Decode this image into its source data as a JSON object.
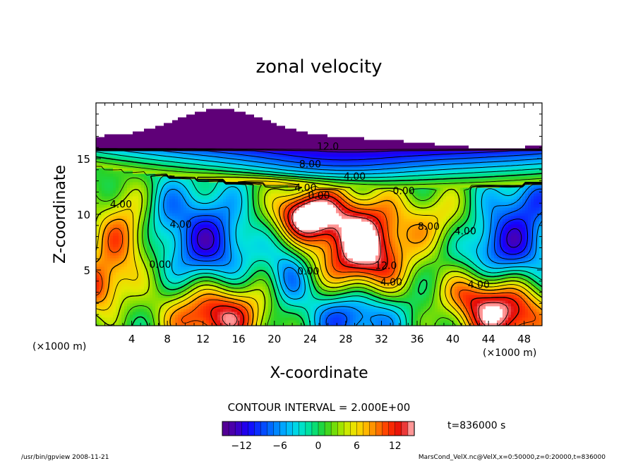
{
  "chart_data": {
    "type": "heatmap",
    "title": "zonal velocity",
    "xlabel": "X-coordinate",
    "ylabel": "Z-coordinate",
    "x_unit_label": "(×1000 m)",
    "x_unit_label_right": "(×1000 m)",
    "xlim": [
      0,
      50
    ],
    "ylim": [
      0,
      20
    ],
    "xticks": [
      4,
      8,
      12,
      16,
      20,
      24,
      28,
      32,
      36,
      40,
      44,
      48
    ],
    "yticks": [
      5,
      10,
      15
    ],
    "contour_interval_text": "CONTOUR INTERVAL = 2.000E+00",
    "time_text": "t=836000 s",
    "colorbar": {
      "range": [
        -15,
        15
      ],
      "ticks": [
        -12,
        -6,
        0,
        6,
        12
      ],
      "colors": [
        "#5b007f",
        "#4000c0",
        "#0000ff",
        "#0060ff",
        "#00b0ff",
        "#00e0e0",
        "#00e080",
        "#20d020",
        "#90e000",
        "#e0f000",
        "#ffd000",
        "#ff9000",
        "#ff3000",
        "#e00000",
        "#ff9090"
      ]
    },
    "contour_labels": [
      {
        "text": "12.0",
        "x": 26,
        "z": 15.8
      },
      {
        "text": "8.00",
        "x": 24,
        "z": 14.2
      },
      {
        "text": "4.00",
        "x": 29,
        "z": 13.1
      },
      {
        "text": "4.00",
        "x": 23.5,
        "z": 12.1
      },
      {
        "text": "0.00",
        "x": 25,
        "z": 11.4
      },
      {
        "text": "0.00",
        "x": 34.5,
        "z": 11.8
      },
      {
        "text": "4.00",
        "x": 2.8,
        "z": 10.6
      },
      {
        "text": "4.00",
        "x": 9.5,
        "z": 8.8
      },
      {
        "text": "0.00",
        "x": 7.2,
        "z": 5.2
      },
      {
        "text": "0.00",
        "x": 23.8,
        "z": 4.6
      },
      {
        "text": "8.00",
        "x": 37.3,
        "z": 8.6
      },
      {
        "text": "4.00",
        "x": 41.4,
        "z": 8.2
      },
      {
        "text": "12.0",
        "x": 32.5,
        "z": 5.1
      },
      {
        "text": "4.00",
        "x": 33.1,
        "z": 3.6
      },
      {
        "text": "4.00",
        "x": 42.9,
        "z": 3.4
      }
    ],
    "features": [
      {
        "type": "jet_max",
        "x": 30,
        "z": 6.5,
        "u": 16
      },
      {
        "type": "jet_max",
        "x": 13.5,
        "z": 1,
        "u": 16
      },
      {
        "type": "jet_max",
        "x": 46,
        "z": 1,
        "u": 15
      },
      {
        "type": "cell_min",
        "x": 12.5,
        "z": 7.5,
        "u": -10
      },
      {
        "type": "cell_min",
        "x": 46,
        "z": 7.5,
        "u": -11
      },
      {
        "type": "cell_min",
        "x": 21.5,
        "z": 4.5,
        "u": -7
      },
      {
        "type": "cell_min",
        "x": 29,
        "z": 1,
        "u": -10
      },
      {
        "type": "cell_max",
        "x": 3,
        "z": 8,
        "u": 9
      },
      {
        "type": "cell_max",
        "x": 23.5,
        "z": 10,
        "u": 12
      }
    ]
  },
  "footer": {
    "left": "/usr/bin/gpview   2008-11-21",
    "right": "MarsCond_VelX.nc@VelX,x=0:50000,z=0:20000,t=836000"
  }
}
